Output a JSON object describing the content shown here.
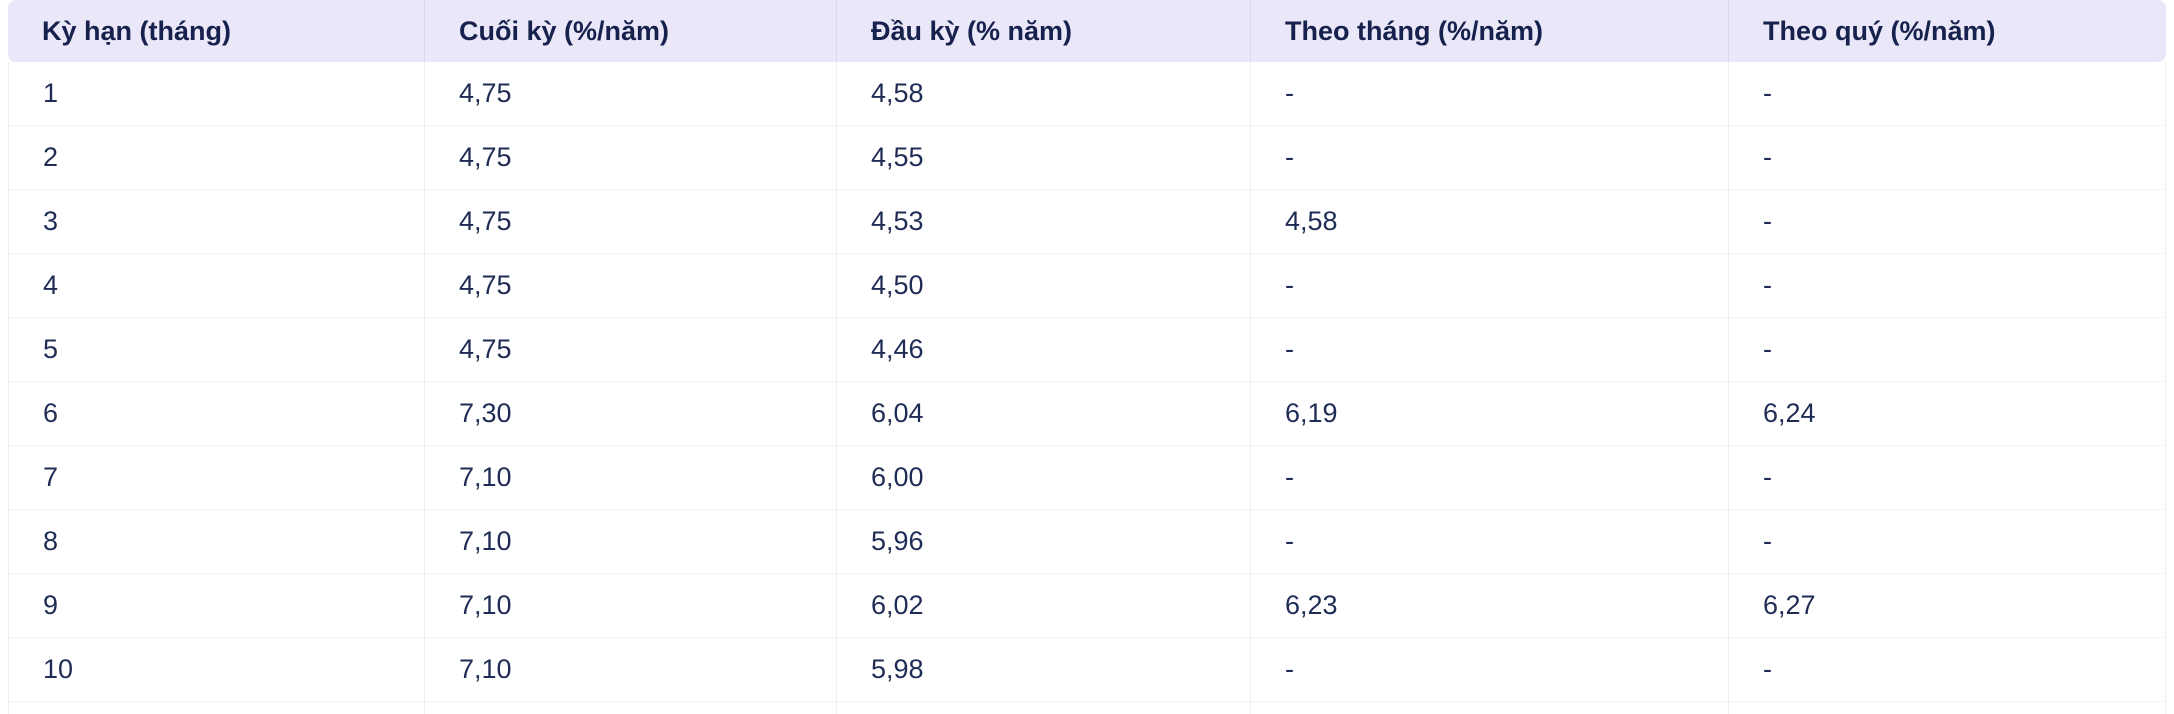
{
  "chart_data": {
    "type": "table",
    "title": "",
    "columns": [
      "Kỳ hạn (tháng)",
      "Cuối kỳ (%/năm)",
      "Đầu kỳ (% năm)",
      "Theo tháng (%/năm)",
      "Theo quý (%/năm)"
    ],
    "rows": [
      [
        "1",
        "4,75",
        "4,58",
        "-",
        "-"
      ],
      [
        "2",
        "4,75",
        "4,55",
        "-",
        "-"
      ],
      [
        "3",
        "4,75",
        "4,53",
        "4,58",
        "-"
      ],
      [
        "4",
        "4,75",
        "4,50",
        "-",
        "-"
      ],
      [
        "5",
        "4,75",
        "4,46",
        "-",
        "-"
      ],
      [
        "6",
        "7,30",
        "6,04",
        "6,19",
        "6,24"
      ],
      [
        "7",
        "7,10",
        "6,00",
        "-",
        "-"
      ],
      [
        "8",
        "7,10",
        "5,96",
        "-",
        "-"
      ],
      [
        "9",
        "7,10",
        "6,02",
        "6,23",
        "6,27"
      ],
      [
        "10",
        "7,10",
        "5,98",
        "-",
        "-"
      ]
    ]
  },
  "colors": {
    "header_bg": "#eae8f8",
    "header_text": "#17214d",
    "body_text": "#1f2c55",
    "row_border": "#f2f2f7",
    "col_border": "#ededf3",
    "header_divider": "#dcdaee",
    "page_bg": "#ffffff"
  }
}
